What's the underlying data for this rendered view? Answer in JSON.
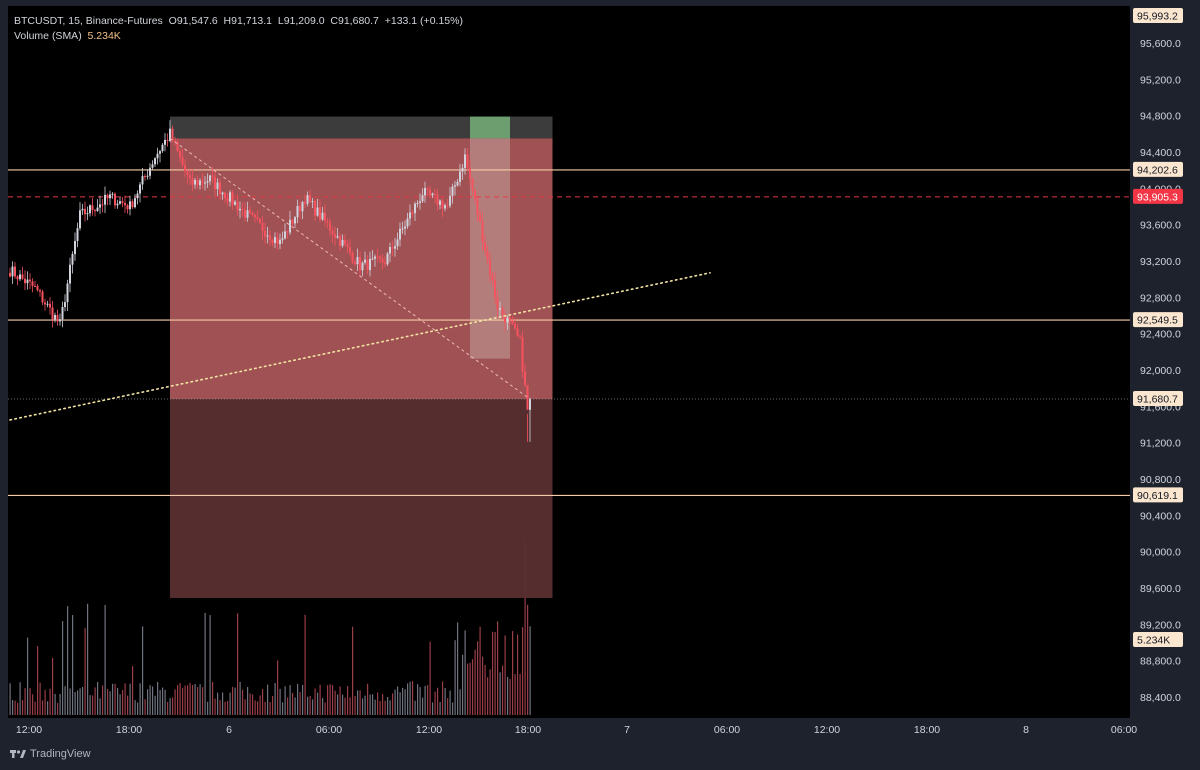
{
  "legend": {
    "symbol": "BTCUSDT, 15, Binance-Futures",
    "open": "O91,547.6",
    "high": "H91,713.1",
    "low": "L91,209.0",
    "close": "C91,680.7",
    "change": "+133.1 (+0.15%)",
    "volume_label": "Volume (SMA)",
    "volume_value": "5.234K"
  },
  "branding": {
    "logo_text": "TradingView"
  },
  "colors": {
    "background": "#000000",
    "frame": "#1e222d",
    "up": "#d1d4dc",
    "down": "#f7525f",
    "level_line": "#f5cba7",
    "dashed_red": "#e53946",
    "short_risk_zone": "#b05a5c",
    "short_target_zone": "#5a2f30",
    "stop_band": "#3c3c3c",
    "green_zone": "#6c9e70",
    "dotted_trend": "#f3e3a2",
    "axis_text": "#d1d4dc"
  },
  "chart_data": {
    "type": "candlestick",
    "symbol": "BTCUSDT",
    "interval": "15",
    "exchange": "Binance-Futures",
    "ohlc_last": {
      "open": 91547.6,
      "high": 91713.1,
      "low": 91209.0,
      "close": 91680.7,
      "change": 133.1,
      "change_pct": 0.15
    },
    "y_axis": {
      "range": [
        88200,
        96050
      ],
      "ticks": [
        "95,600.0",
        "95,200.0",
        "94,800.0",
        "94,400.0",
        "94,000.0",
        "93,600.0",
        "93,200.0",
        "92,800.0",
        "92,400.0",
        "92,000.0",
        "91,600.0",
        "91,200.0",
        "90,800.0",
        "90,400.0",
        "90,000.0",
        "89,600.0",
        "89,200.0",
        "88,800.0",
        "88,400.0"
      ]
    },
    "x_axis": {
      "ticks": [
        "12:00",
        "18:00",
        "6",
        "06:00",
        "12:00",
        "18:00",
        "7",
        "06:00",
        "12:00",
        "18:00",
        "8",
        "06:00"
      ]
    },
    "price_badges": [
      {
        "label": "95,993.2",
        "value": 95993.2,
        "style": "level"
      },
      {
        "label": "94,202.6",
        "value": 94202.6,
        "style": "level"
      },
      {
        "label": "93,905.3",
        "value": 93905.3,
        "style": "red"
      },
      {
        "label": "92,549.5",
        "value": 92549.5,
        "style": "level"
      },
      {
        "label": "91,680.7",
        "value": 91680.7,
        "style": "last"
      },
      {
        "label": "90,619.1",
        "value": 90619.1,
        "style": "level"
      },
      {
        "label": "5.234K",
        "value": 5.234,
        "style": "volume"
      }
    ],
    "horizontal_levels": [
      94202.6,
      92549.5,
      90619.1
    ],
    "dashed_level": 93905.3,
    "last_price_line": 91680.7,
    "short_position": {
      "start_bar": 64,
      "end_bar": 217,
      "entry": 91680.7,
      "stop": 94800,
      "stop_band_top": 94790,
      "stop_band_bottom": 94550,
      "target": 89490
    },
    "green_zone": {
      "start_bar": 184,
      "end_bar": 200,
      "top": 94790,
      "bottom": 92125
    },
    "dashed_trendline": {
      "x1_bar": 64,
      "y1": 94550,
      "x2_bar": 207,
      "y2": 91700
    },
    "dotted_trendline": {
      "x1_bar": 0,
      "y1": 91450,
      "x2_bar": 280,
      "y2": 93070
    },
    "waypoints": [
      [
        0,
        93100
      ],
      [
        10,
        92900
      ],
      [
        20,
        92500
      ],
      [
        28,
        93700
      ],
      [
        40,
        93900
      ],
      [
        48,
        93800
      ],
      [
        58,
        94350
      ],
      [
        64,
        94600
      ],
      [
        72,
        94050
      ],
      [
        80,
        94100
      ],
      [
        95,
        93700
      ],
      [
        108,
        93400
      ],
      [
        118,
        93900
      ],
      [
        130,
        93500
      ],
      [
        140,
        93150
      ],
      [
        150,
        93200
      ],
      [
        165,
        93950
      ],
      [
        175,
        93800
      ],
      [
        182,
        94350
      ],
      [
        188,
        93600
      ],
      [
        195,
        92700
      ],
      [
        200,
        92500
      ],
      [
        204,
        92300
      ],
      [
        207,
        91548
      ],
      [
        208,
        91681
      ]
    ]
  }
}
